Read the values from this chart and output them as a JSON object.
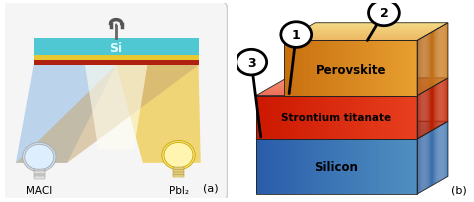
{
  "fig_width": 4.74,
  "fig_height": 2.03,
  "dpi": 100,
  "bg_color": "#ffffff",
  "panel_a": {
    "si_bar_color": "#4fc8d4",
    "si_bar_yellow": "#e8c830",
    "si_bar_red": "#b02010",
    "si_text": "Si",
    "si_text_color": "#e0ffff",
    "left_beam_color": "#a8c8e8",
    "right_beam_color": "#f0d060",
    "cross_beam_color": "#c8a870",
    "label_macl": "MACl",
    "label_pbi2": "PbI₂",
    "label_a": "(a)"
  },
  "panel_b": {
    "silicon_label": "Silicon",
    "sto_label": "Strontium titanate",
    "perovskite_label": "Perovskite",
    "label_b": "(b)",
    "pin1_label": "1",
    "pin2_label": "2",
    "pin3_label": "3"
  }
}
